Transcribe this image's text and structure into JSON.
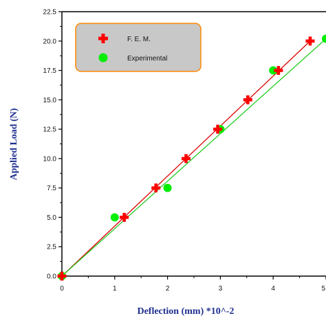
{
  "chart_data": {
    "type": "scatter",
    "title": "",
    "xlabel": "Deflection (mm) *10^-2",
    "ylabel": "Applied Load (N)",
    "xlim": [
      0,
      5
    ],
    "ylim": [
      0,
      22.5
    ],
    "x_ticks": [
      "0",
      "1",
      "2",
      "3",
      "4",
      "5"
    ],
    "y_ticks": [
      "0.0",
      "2.5",
      "5.0",
      "7.5",
      "10.0",
      "12.5",
      "15.0",
      "17.5",
      "20.0",
      "22.5"
    ],
    "legend_placement": "top-left",
    "series": [
      {
        "name": "F. E. M.",
        "marker": "cross",
        "color": "#ff0000",
        "points": [
          [
            0,
            0
          ],
          [
            1.18,
            5.0
          ],
          [
            1.78,
            7.5
          ],
          [
            2.35,
            10.0
          ],
          [
            2.95,
            12.5
          ],
          [
            3.52,
            15.0
          ],
          [
            4.1,
            17.5
          ],
          [
            4.7,
            20.0
          ]
        ]
      },
      {
        "name": "Experimental",
        "marker": "circle",
        "color": "#00ee00",
        "points": [
          [
            0,
            0
          ],
          [
            1.0,
            5.0
          ],
          [
            2.0,
            7.5
          ],
          [
            3.0,
            12.5
          ],
          [
            4.0,
            17.5
          ],
          [
            5.0,
            20.2
          ]
        ]
      }
    ],
    "fit_lines": [
      {
        "series": "F. E. M.",
        "color": "#dd0000",
        "from": [
          0,
          0
        ],
        "to": [
          4.7,
          20.0
        ]
      },
      {
        "series": "Experimental",
        "color": "#22cc22",
        "from": [
          0,
          0
        ],
        "to": [
          5.0,
          20.2
        ]
      }
    ],
    "legend_box_color": "#c8c8c8",
    "legend_border_color": "#ff8800"
  }
}
